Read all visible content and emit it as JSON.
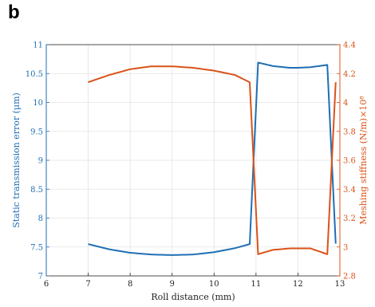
{
  "panel_label": "b",
  "chart_data": {
    "type": "line",
    "title": "",
    "xlabel": "Roll distance (mm)",
    "ylabel_left": "Static transmission error (μm)",
    "ylabel_right": "Meshing stiffness (N/m)×10⁸",
    "xlim": [
      6,
      13
    ],
    "ylim_left": [
      7,
      11
    ],
    "ylim_right": [
      2.8,
      4.4
    ],
    "xticks": [
      "6",
      "7",
      "8",
      "9",
      "10",
      "11",
      "12",
      "13"
    ],
    "yticks_left": [
      "7",
      "7.5",
      "8",
      "8.5",
      "9",
      "9.5",
      "10",
      "10.5",
      "11"
    ],
    "yticks_right": [
      "2.8",
      "3",
      "3.2",
      "3.4",
      "3.6",
      "3.8",
      "4",
      "4.2",
      "4.4"
    ],
    "grid": true,
    "colors": {
      "left": "#1f6fb4",
      "right": "#d95319"
    },
    "series": [
      {
        "axis": "left",
        "x": [
          7.0,
          7.5,
          8.0,
          8.5,
          9.0,
          9.5,
          10.0,
          10.5,
          10.85,
          11.05,
          11.4,
          11.8,
          12.0,
          12.3,
          12.7,
          12.9
        ],
        "y": [
          7.55,
          7.46,
          7.4,
          7.37,
          7.36,
          7.37,
          7.41,
          7.48,
          7.55,
          10.69,
          10.63,
          10.6,
          10.6,
          10.61,
          10.65,
          7.56
        ]
      },
      {
        "axis": "right",
        "x": [
          7.0,
          7.5,
          8.0,
          8.5,
          9.0,
          9.5,
          10.0,
          10.5,
          10.85,
          11.05,
          11.4,
          11.8,
          12.0,
          12.3,
          12.7,
          12.9
        ],
        "y": [
          4.14,
          4.19,
          4.23,
          4.25,
          4.25,
          4.24,
          4.22,
          4.19,
          4.14,
          2.95,
          2.98,
          2.99,
          2.99,
          2.99,
          2.95,
          4.14
        ]
      }
    ]
  }
}
